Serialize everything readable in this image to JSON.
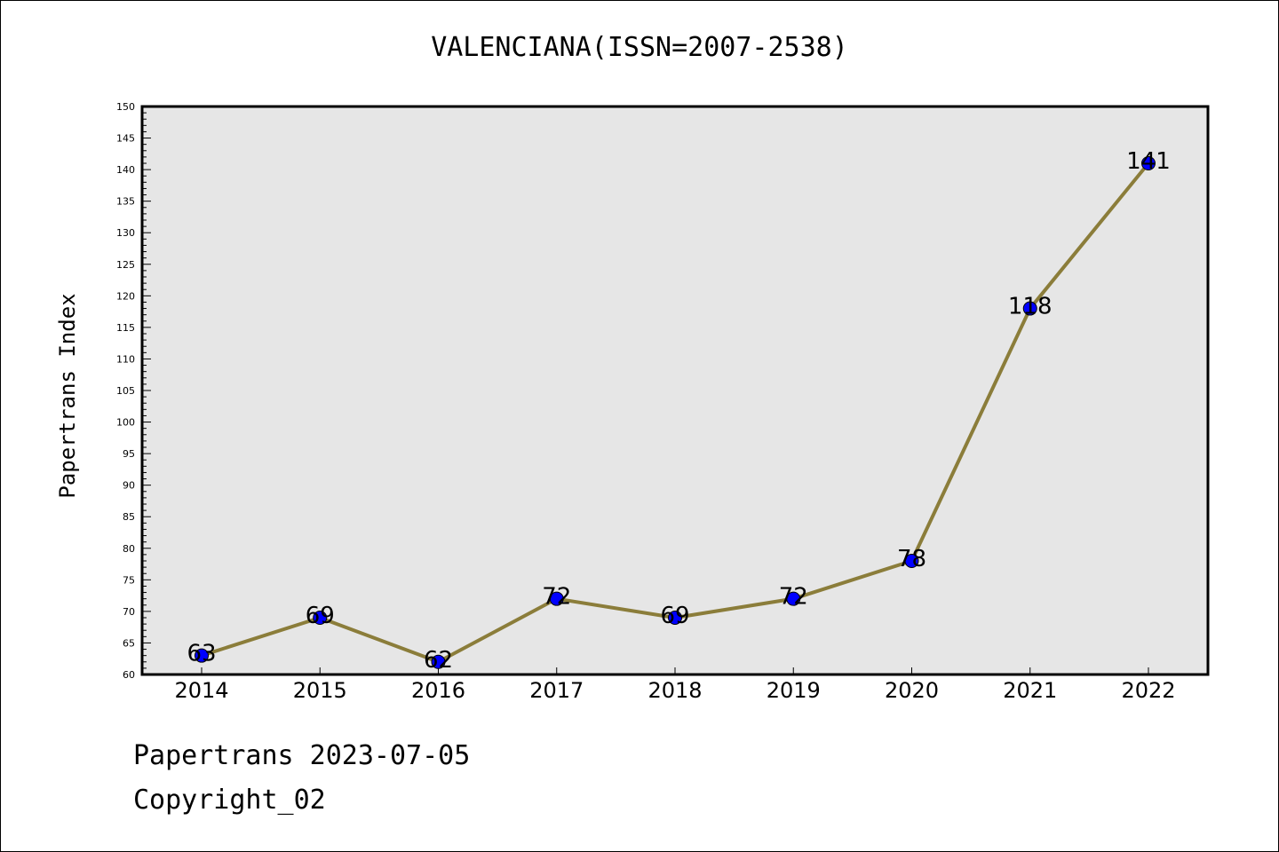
{
  "chart_data": {
    "type": "line",
    "title": "VALENCIANA(ISSN=2007-2538)",
    "xlabel": "",
    "ylabel": "Papertrans Index",
    "categories": [
      "2014",
      "2015",
      "2016",
      "2017",
      "2018",
      "2019",
      "2020",
      "2021",
      "2022"
    ],
    "series": [
      {
        "values": [
          63,
          69,
          62,
          72,
          69,
          72,
          78,
          118,
          141
        ]
      }
    ],
    "data_labels": [
      "63",
      "69",
      "62",
      "72",
      "69",
      "72",
      "78",
      "118",
      "141"
    ],
    "ylim": [
      60,
      150
    ],
    "y_tick_labels": [
      "60",
      "65",
      "70",
      "75",
      "80",
      "85",
      "90",
      "95",
      "100",
      "105",
      "110",
      "115",
      "120",
      "125",
      "130",
      "135",
      "140",
      "145",
      "150"
    ],
    "y_minor_step": 1,
    "grid": false,
    "plot_background": "#e6e6e6",
    "line_color": "#8b7d3a",
    "marker_color": "#0000ff"
  },
  "footer": {
    "date_text": "Papertrans 2023-07-05",
    "copyright_text": "Copyright_02"
  }
}
